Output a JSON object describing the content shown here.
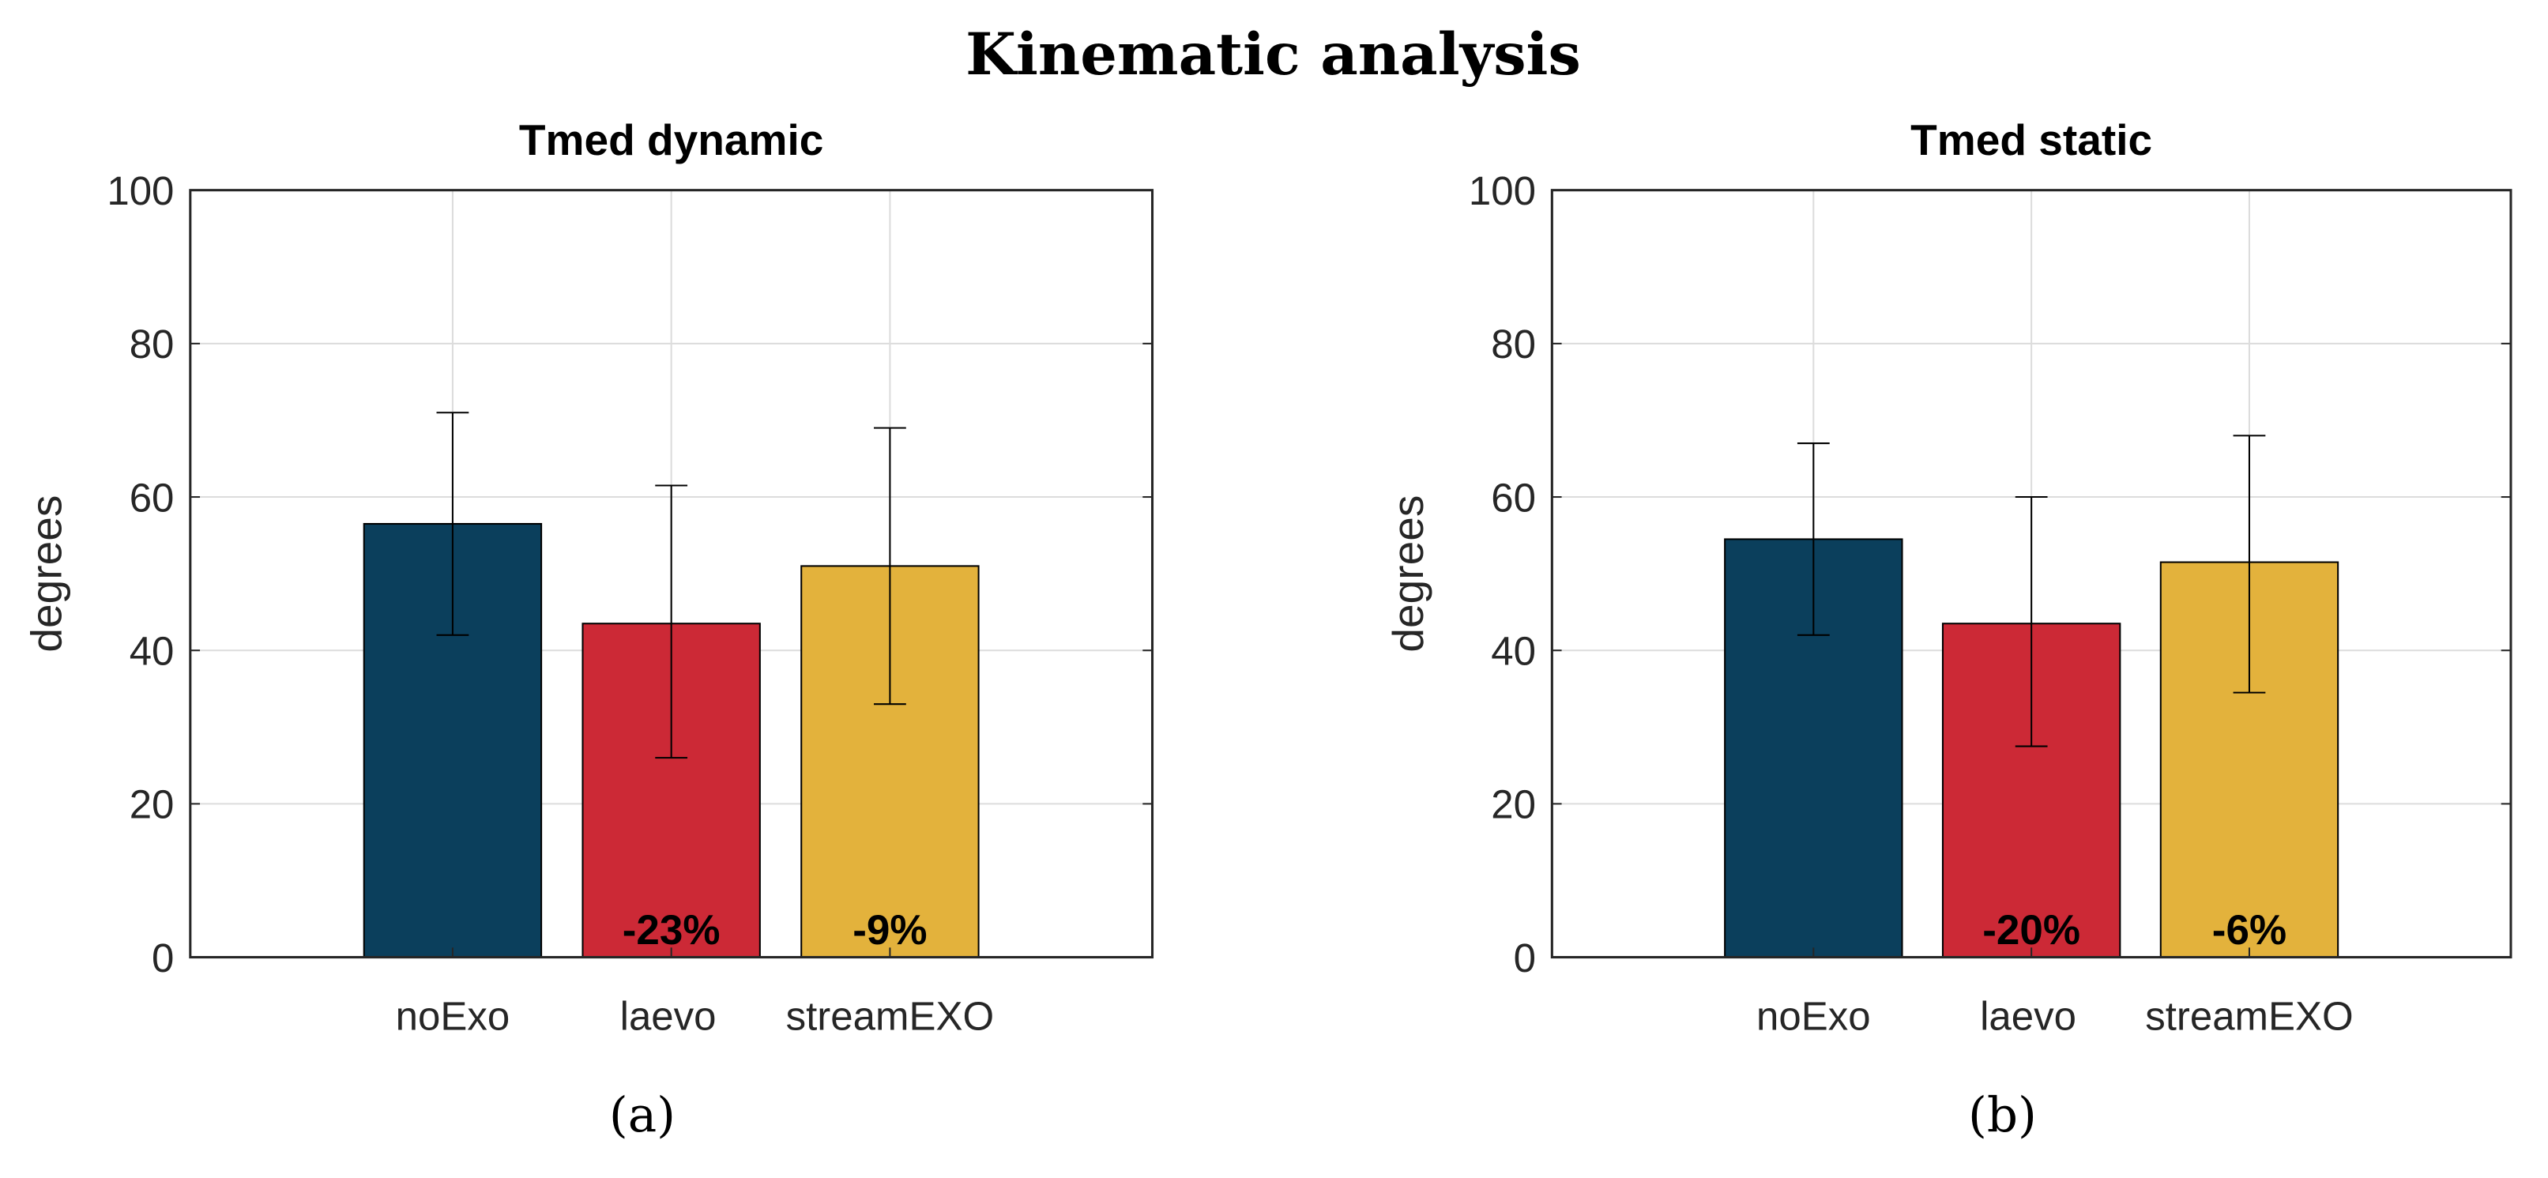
{
  "title": "Kinematic analysis",
  "colors": {
    "noExo": "#0b3f5c",
    "laevo": "#cc2936",
    "streamEXO": "#e3b23c"
  },
  "chart_data": [
    {
      "type": "bar",
      "panel": "(a)",
      "title": "Tmed dynamic",
      "xlabel": "",
      "ylabel": "degrees",
      "ylim": [
        0,
        100
      ],
      "xlim": [
        -0.2,
        4.2
      ],
      "yticks": [
        "0",
        "20",
        "40",
        "60",
        "80",
        "100"
      ],
      "grid": true,
      "categories": [
        "noExo",
        "laevo",
        "streamEXO"
      ],
      "values": [
        56.5,
        43.5,
        51
      ],
      "error_low": [
        42,
        26,
        33
      ],
      "error_high": [
        71,
        61.5,
        69
      ],
      "annotations": [
        "",
        "-23%",
        "-9%"
      ]
    },
    {
      "type": "bar",
      "panel": "(b)",
      "title": "Tmed static",
      "xlabel": "",
      "ylabel": "degrees",
      "ylim": [
        0,
        100
      ],
      "xlim": [
        -0.2,
        4.2
      ],
      "yticks": [
        "0",
        "20",
        "40",
        "60",
        "80",
        "100"
      ],
      "grid": true,
      "categories": [
        "noExo",
        "laevo",
        "streamEXO"
      ],
      "values": [
        54.5,
        43.5,
        51.5
      ],
      "error_low": [
        42,
        27.5,
        34.5
      ],
      "error_high": [
        67,
        60,
        68
      ],
      "annotations": [
        "",
        "-20%",
        "-6%"
      ]
    }
  ]
}
